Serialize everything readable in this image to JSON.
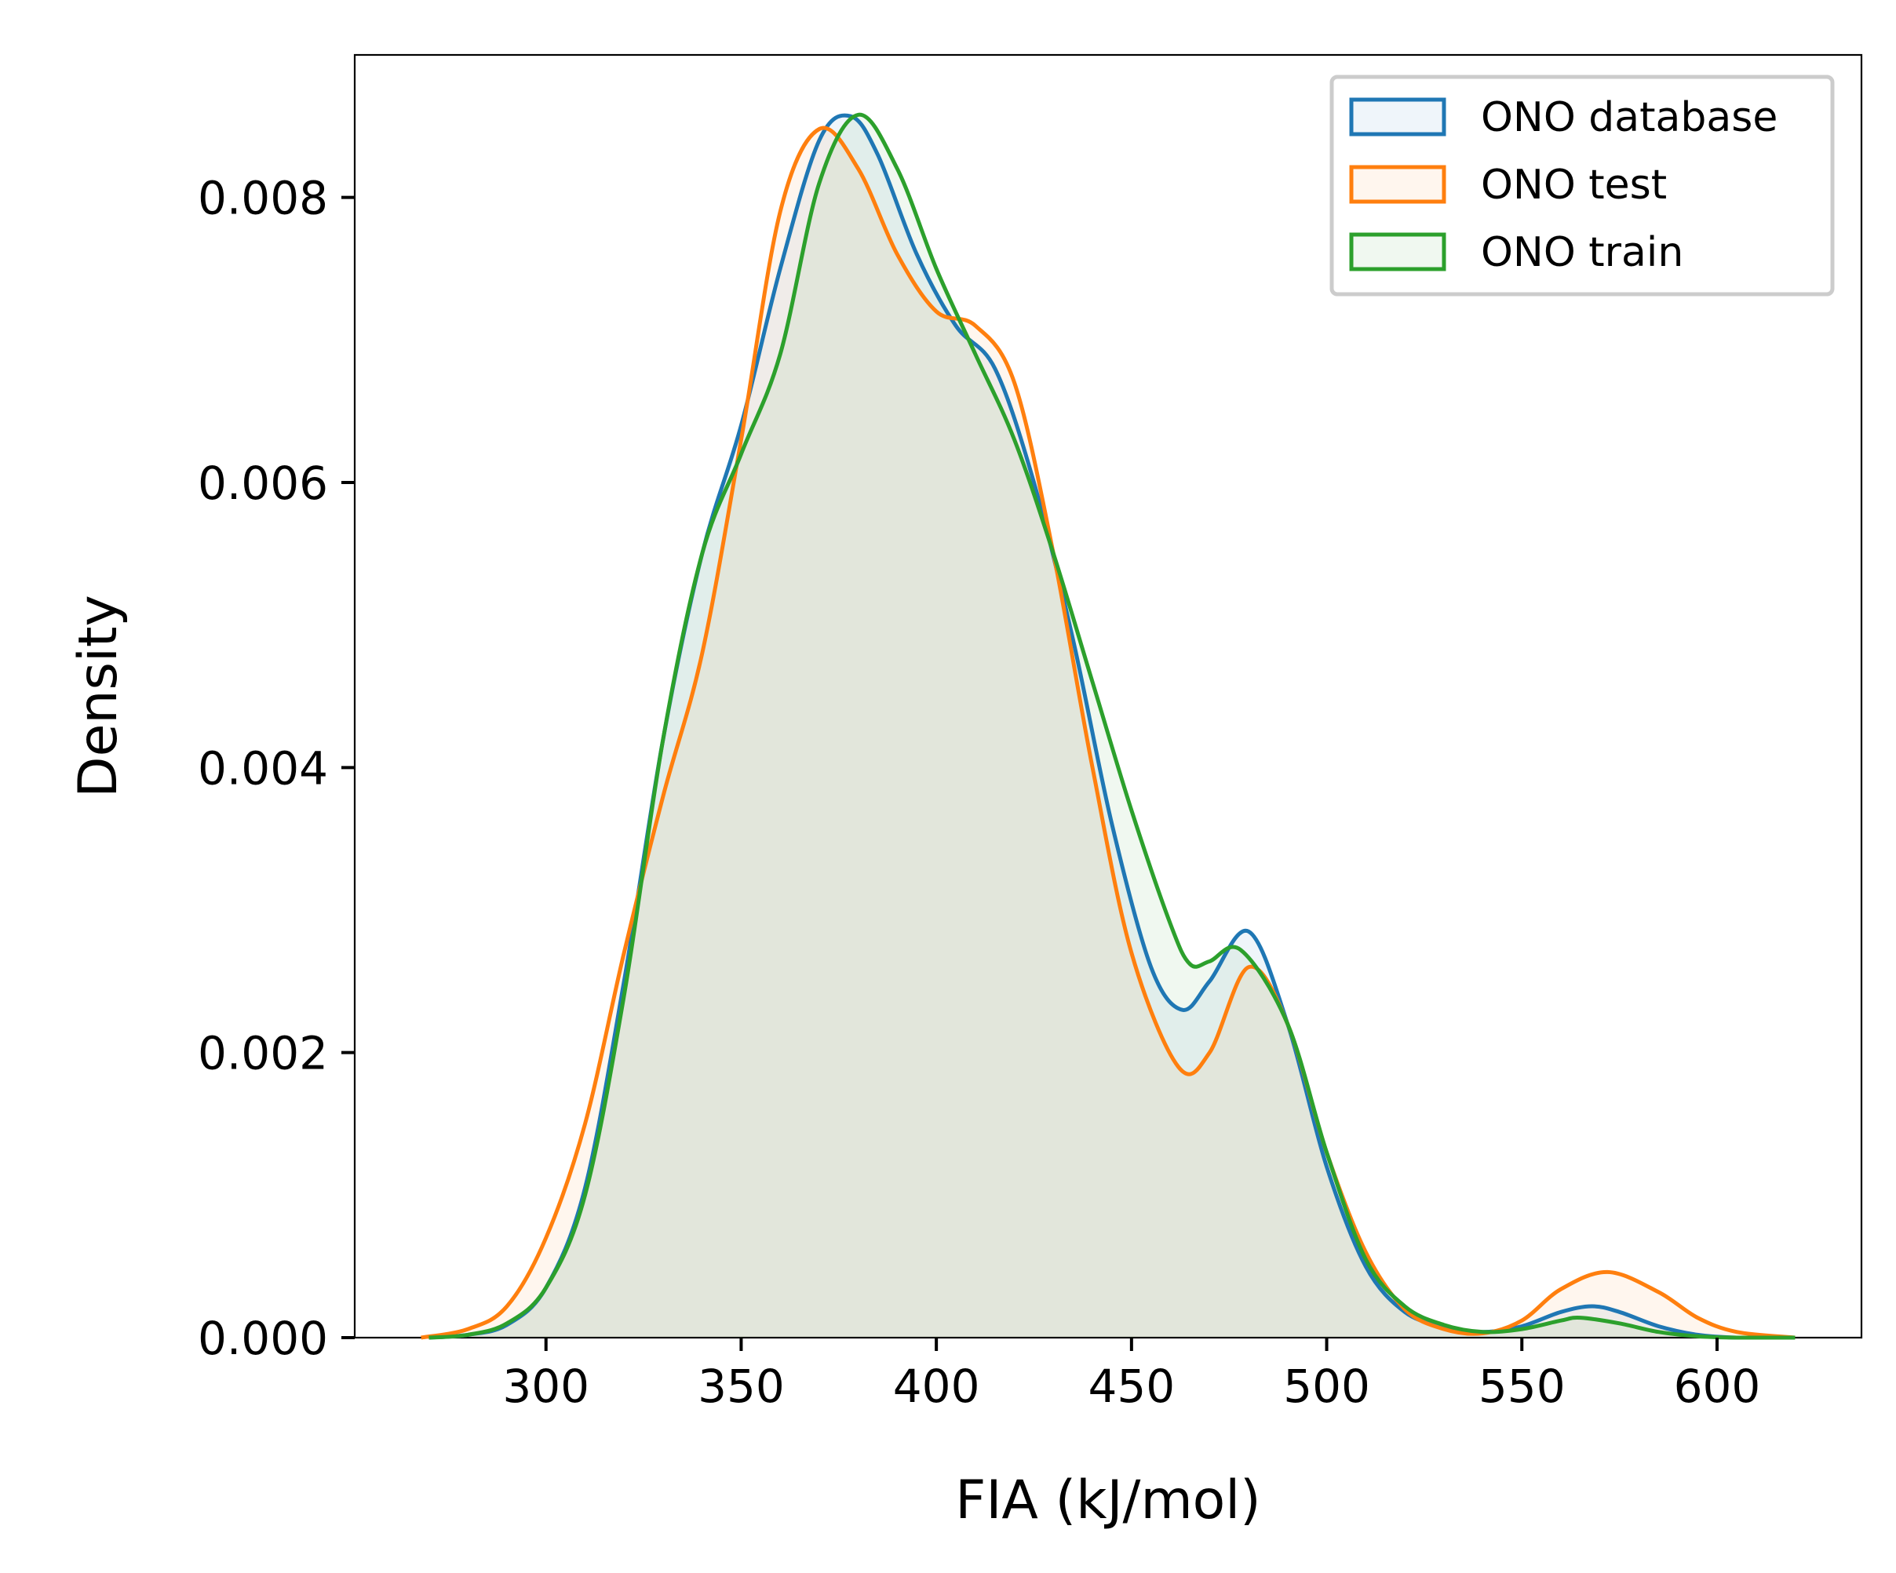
{
  "colors": {
    "ono_database": "#1f77b4",
    "ono_test": "#ff7f0e",
    "ono_train": "#2ca02c"
  },
  "chart_data": {
    "type": "area",
    "title": "",
    "xlabel": "FIA (kJ/mol)",
    "ylabel": "Density",
    "xlim": [
      251,
      637
    ],
    "ylim": [
      0,
      0.009
    ],
    "x_ticks": [
      300,
      350,
      400,
      450,
      500,
      550,
      600
    ],
    "x_tick_labels": [
      "300",
      "350",
      "400",
      "450",
      "500",
      "550",
      "600"
    ],
    "y_ticks": [
      0,
      0.002,
      0.004,
      0.006,
      0.008
    ],
    "y_tick_labels": [
      "0.000",
      "0.002",
      "0.004",
      "0.006",
      "0.008"
    ],
    "grid": false,
    "legend_position": "top-right",
    "series": [
      {
        "name": "ONO database",
        "color_key": "ono_database",
        "points": [
          [
            270,
            0
          ],
          [
            280,
            2e-05
          ],
          [
            290,
            9e-05
          ],
          [
            300,
            0.00035
          ],
          [
            310,
            0.00105
          ],
          [
            320,
            0.0025
          ],
          [
            330,
            0.0042
          ],
          [
            340,
            0.0055
          ],
          [
            350,
            0.0064
          ],
          [
            360,
            0.0075
          ],
          [
            370,
            0.0084
          ],
          [
            378,
            0.00857
          ],
          [
            385,
            0.0083
          ],
          [
            395,
            0.0076
          ],
          [
            405,
            0.0071
          ],
          [
            415,
            0.0068
          ],
          [
            425,
            0.006
          ],
          [
            435,
            0.0049
          ],
          [
            445,
            0.0036
          ],
          [
            455,
            0.0026
          ],
          [
            463,
            0.0023
          ],
          [
            470,
            0.0025
          ],
          [
            480,
            0.00285
          ],
          [
            490,
            0.0022
          ],
          [
            500,
            0.0012
          ],
          [
            510,
            0.0005
          ],
          [
            520,
            0.00018
          ],
          [
            530,
            8e-05
          ],
          [
            540,
            4e-05
          ],
          [
            550,
            8e-05
          ],
          [
            560,
            0.00018
          ],
          [
            568,
            0.00022
          ],
          [
            575,
            0.00018
          ],
          [
            585,
            8e-05
          ],
          [
            595,
            2e-05
          ],
          [
            605,
            0
          ],
          [
            620,
            0
          ]
        ]
      },
      {
        "name": "ONO test",
        "color_key": "ono_test",
        "points": [
          [
            268,
            0
          ],
          [
            280,
            6e-05
          ],
          [
            290,
            0.00022
          ],
          [
            300,
            0.0007
          ],
          [
            310,
            0.0015
          ],
          [
            320,
            0.0027
          ],
          [
            330,
            0.0038
          ],
          [
            340,
            0.0048
          ],
          [
            350,
            0.0063
          ],
          [
            360,
            0.0079
          ],
          [
            370,
            0.00848
          ],
          [
            380,
            0.0082
          ],
          [
            390,
            0.0076
          ],
          [
            400,
            0.0072
          ],
          [
            410,
            0.0071
          ],
          [
            420,
            0.0067
          ],
          [
            430,
            0.0055
          ],
          [
            440,
            0.004
          ],
          [
            450,
            0.0027
          ],
          [
            462,
            0.0019
          ],
          [
            470,
            0.002
          ],
          [
            480,
            0.0026
          ],
          [
            490,
            0.0022
          ],
          [
            500,
            0.0013
          ],
          [
            510,
            0.0006
          ],
          [
            520,
            0.0002
          ],
          [
            530,
            6e-05
          ],
          [
            540,
            3e-05
          ],
          [
            550,
            0.00012
          ],
          [
            560,
            0.00034
          ],
          [
            572,
            0.00046
          ],
          [
            585,
            0.00032
          ],
          [
            595,
            0.00014
          ],
          [
            605,
            4e-05
          ],
          [
            620,
            0
          ]
        ]
      },
      {
        "name": "ONO train",
        "color_key": "ono_train",
        "points": [
          [
            270,
            0
          ],
          [
            280,
            2e-05
          ],
          [
            290,
            0.0001
          ],
          [
            300,
            0.00035
          ],
          [
            310,
            0.001
          ],
          [
            320,
            0.0024
          ],
          [
            330,
            0.0042
          ],
          [
            340,
            0.0055
          ],
          [
            350,
            0.0062
          ],
          [
            360,
            0.0069
          ],
          [
            370,
            0.0081
          ],
          [
            380,
            0.00858
          ],
          [
            390,
            0.0082
          ],
          [
            400,
            0.0075
          ],
          [
            410,
            0.0069
          ],
          [
            420,
            0.0063
          ],
          [
            430,
            0.0055
          ],
          [
            440,
            0.0046
          ],
          [
            450,
            0.0037
          ],
          [
            460,
            0.0029
          ],
          [
            465,
            0.00262
          ],
          [
            470,
            0.00264
          ],
          [
            478,
            0.00272
          ],
          [
            490,
            0.0022
          ],
          [
            500,
            0.0013
          ],
          [
            510,
            0.00055
          ],
          [
            520,
            0.00022
          ],
          [
            530,
            9e-05
          ],
          [
            540,
            4e-05
          ],
          [
            550,
            6e-05
          ],
          [
            560,
            0.00012
          ],
          [
            565,
            0.00014
          ],
          [
            575,
            0.0001
          ],
          [
            585,
            4e-05
          ],
          [
            595,
            1e-05
          ],
          [
            605,
            0
          ],
          [
            620,
            0
          ]
        ]
      }
    ]
  }
}
